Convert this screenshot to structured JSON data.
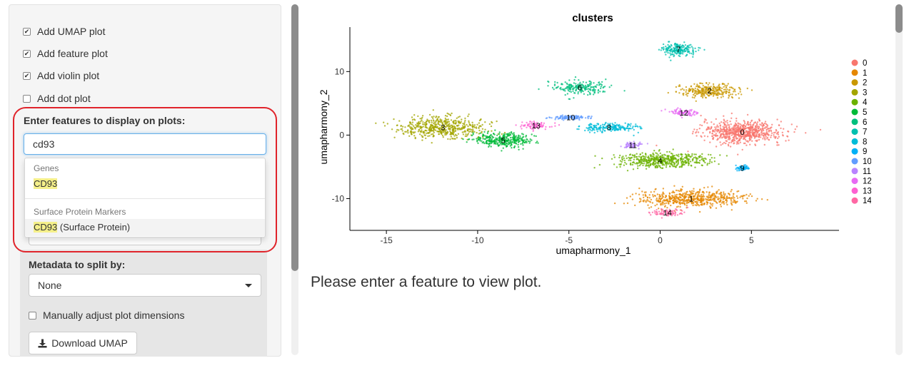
{
  "sidebar": {
    "checkboxes": [
      {
        "label": "Add UMAP plot",
        "checked": true
      },
      {
        "label": "Add feature plot",
        "checked": true
      },
      {
        "label": "Add violin plot",
        "checked": true
      },
      {
        "label": "Add dot plot",
        "checked": false
      }
    ],
    "features_label": "Enter features to display on plots:",
    "features_value": "cd93",
    "dropdown": {
      "group1": "Genes",
      "item1": "CD93",
      "group2": "Surface Protein Markers",
      "item2_hl": "CD93",
      "item2_rest": " (Surface Protein)"
    },
    "split_label": "Metadata to split by:",
    "split_value": "None",
    "manual_adjust_label": "Manually adjust plot dimensions",
    "download_label": "Download UMAP"
  },
  "main": {
    "message": "Please enter a feature to view plot."
  },
  "colors": {
    "highlight_ring": "#e0242b",
    "input_focus": "#66afe9",
    "match_highlight": "#f5f08a"
  },
  "chart_data": {
    "type": "scatter",
    "title": "clusters",
    "xlabel": "umapharmony_1",
    "ylabel": "umapharmony_2",
    "xlim": [
      -17,
      9.8
    ],
    "ylim": [
      -15,
      17
    ],
    "x_ticks": [
      -15,
      -10,
      -5,
      0,
      5
    ],
    "y_ticks": [
      -10,
      0,
      10
    ],
    "x_tick_labels": [
      "-15",
      "-10",
      "-5",
      "0",
      "5"
    ],
    "y_tick_labels": [
      "-10",
      "0",
      "10"
    ],
    "grid": false,
    "legend_placement": "right",
    "clusters": [
      {
        "name": "0",
        "color": "#F8766D",
        "centroid": [
          4.5,
          0.5
        ]
      },
      {
        "name": "1",
        "color": "#E58700",
        "centroid": [
          1.7,
          -10.0
        ]
      },
      {
        "name": "2",
        "color": "#C99800",
        "centroid": [
          2.7,
          7.0
        ]
      },
      {
        "name": "3",
        "color": "#A3A500",
        "centroid": [
          -11.9,
          1.2
        ]
      },
      {
        "name": "4",
        "color": "#6BB100",
        "centroid": [
          0.0,
          -4.0
        ]
      },
      {
        "name": "5",
        "color": "#00BA38",
        "centroid": [
          -8.6,
          -0.8
        ]
      },
      {
        "name": "6",
        "color": "#00BF7D",
        "centroid": [
          -4.4,
          7.5
        ]
      },
      {
        "name": "7",
        "color": "#00C0AF",
        "centroid": [
          1.0,
          13.5
        ]
      },
      {
        "name": "8",
        "color": "#00BCD8",
        "centroid": [
          -2.8,
          1.2
        ]
      },
      {
        "name": "9",
        "color": "#00B0F6",
        "centroid": [
          4.5,
          -5.2
        ]
      },
      {
        "name": "10",
        "color": "#619CFF",
        "centroid": [
          -4.9,
          2.8
        ]
      },
      {
        "name": "11",
        "color": "#B983FF",
        "centroid": [
          -1.5,
          -1.6
        ]
      },
      {
        "name": "12",
        "color": "#E76BF3",
        "centroid": [
          1.3,
          3.5
        ]
      },
      {
        "name": "13",
        "color": "#FD61D1",
        "centroid": [
          -6.8,
          1.5
        ]
      },
      {
        "name": "14",
        "color": "#FF67A4",
        "centroid": [
          0.4,
          -12.2
        ]
      }
    ]
  }
}
